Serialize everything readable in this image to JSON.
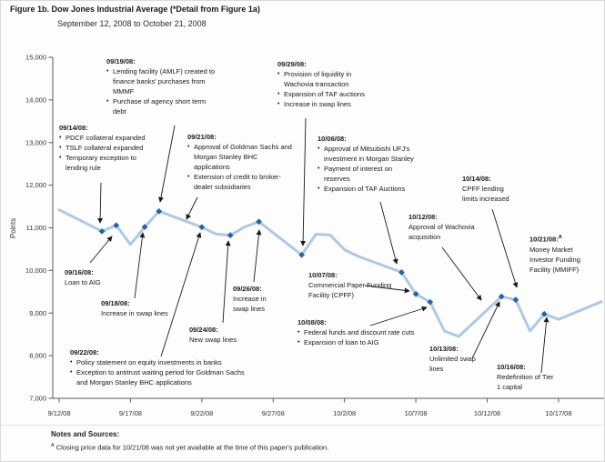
{
  "figure": {
    "title": "Figure 1b. Dow Jones Industrial Average (*Detail from Figure 1a)",
    "subtitle": "September 12, 2008 to October 21, 2008"
  },
  "chart_data": {
    "type": "line",
    "title": "Dow Jones Industrial Average, September 12, 2008 to October 21, 2008",
    "xlabel": "",
    "ylabel": "Points",
    "ylim": [
      7000,
      15000
    ],
    "grid": false,
    "legend": "none",
    "y_ticks": [
      "15,000",
      "14,000",
      "13,000",
      "12,000",
      "11,000",
      "10,000",
      "9,000",
      "8,000",
      "7,000"
    ],
    "x_tick_days": [
      0,
      5,
      10,
      15,
      20,
      25,
      30,
      35
    ],
    "x_tick_labels": [
      "9/12/08",
      "9/17/08",
      "9/22/08",
      "9/27/08",
      "10/2/08",
      "10/7/08",
      "10/12/08",
      "10/17/08"
    ],
    "series": [
      {
        "name": "DJIA close",
        "dates": [
          "9/12/08",
          "9/15/08",
          "9/16/08",
          "9/17/08",
          "9/18/08",
          "9/19/08",
          "9/22/08",
          "9/23/08",
          "9/24/08",
          "9/25/08",
          "9/26/08",
          "9/29/08",
          "9/30/08",
          "10/1/08",
          "10/2/08",
          "10/3/08",
          "10/6/08",
          "10/7/08",
          "10/8/08",
          "10/9/08",
          "10/10/08",
          "10/13/08",
          "10/14/08",
          "10/15/08",
          "10/16/08",
          "10/17/08",
          "10/20/08"
        ],
        "days": [
          0,
          3,
          4,
          5,
          6,
          7,
          10,
          11,
          12,
          13,
          14,
          17,
          18,
          19,
          20,
          21,
          24,
          25,
          26,
          27,
          28,
          31,
          32,
          33,
          34,
          35,
          38
        ],
        "values": [
          11422,
          10918,
          11059,
          10610,
          11020,
          11388,
          11016,
          10854,
          10825,
          11022,
          11143,
          10365,
          10851,
          10831,
          10483,
          10325,
          9956,
          9447,
          9258,
          8579,
          8451,
          9388,
          9311,
          8578,
          8979,
          8852,
          9265
        ]
      }
    ],
    "marker_days": [
      3,
      4,
      6,
      7,
      10,
      12,
      14,
      17,
      24,
      25,
      26,
      31,
      32,
      34
    ],
    "line_color": "#aec9e6",
    "marker_color": "#2565a3"
  },
  "annotations": [
    {
      "date": "09/19/08:",
      "bullets": [
        "Lending facility (AMLF) created to finance banks' purchases from MMMF",
        "Purchase of agency short term debt"
      ]
    },
    {
      "date": "09/14/08:",
      "bullets": [
        "PDCF collateral expanded",
        "TSLF collateral expanded",
        "Temporary exception to lending rule"
      ]
    },
    {
      "date": "09/21/08:",
      "bullets": [
        "Approval of Goldman Sachs and Morgan Stanley BHC applications",
        "Extension of credit to broker-dealer subsidiaries"
      ]
    },
    {
      "date": "09/29/08:",
      "bullets": [
        "Provision of liquidity in Wachovia transaction",
        "Expansion of TAF auctions",
        "Increase in swap lines"
      ]
    },
    {
      "date": "10/06/08:",
      "bullets": [
        "Approval of Mitsubishi UFJ's investment in Morgan Stanley",
        "Payment of interest on reserves",
        "Expansion of TAF Auctions"
      ]
    },
    {
      "date": "10/14/08:",
      "text": "CPFF lending limits increased"
    },
    {
      "date": "10/12/08:",
      "text": "Approval of Wachovia acquisition"
    },
    {
      "date": "10/21/08:",
      "sup": "A",
      "text": "Money Market Investor Funding Facility (MMIFF)"
    },
    {
      "date": "09/16/08:",
      "text": "Loan to AIG"
    },
    {
      "date": "09/18/08:",
      "text": "Increase in swap lines"
    },
    {
      "date": "09/22/08:",
      "bullets": [
        "Policy statement on equity investments in banks",
        "Exception to antitrust waiting period for Goldman Sachs and Morgan Stanley BHC applications"
      ]
    },
    {
      "date": "09/24/08:",
      "text": "New swap lines"
    },
    {
      "date": "09/26/08:",
      "text": "Increase in swap lines"
    },
    {
      "date": "10/07/08:",
      "text": "Commercial Paper Funding Facility (CPFF)"
    },
    {
      "date": "10/08/08:",
      "bullets": [
        "Federal funds and discount rate cuts",
        "Expansion of loan to AIG"
      ]
    },
    {
      "date": "10/13/08:",
      "text": "Unlimited swap lines"
    },
    {
      "date": "10/16/08:",
      "text": "Redefinition of Tier 1 capital"
    }
  ],
  "callout_lines": [
    {
      "x1": 110,
      "y1": 200,
      "x2": 109,
      "y2": 244
    },
    {
      "x1": 98,
      "y1": 288,
      "x2": 122,
      "y2": 259
    },
    {
      "x1": 147,
      "y1": 327,
      "x2": 156,
      "y2": 255
    },
    {
      "x1": 191,
      "y1": 137,
      "x2": 175,
      "y2": 221
    },
    {
      "x1": 216,
      "y1": 216,
      "x2": 204,
      "y2": 240
    },
    {
      "x1": 176,
      "y1": 391,
      "x2": 219,
      "y2": 255
    },
    {
      "x1": 244,
      "y1": 354,
      "x2": 250,
      "y2": 264
    },
    {
      "x1": 278,
      "y1": 309,
      "x2": 284,
      "y2": 252
    },
    {
      "x1": 335,
      "y1": 129,
      "x2": 332,
      "y2": 269
    },
    {
      "x1": 417,
      "y1": 221,
      "x2": 435,
      "y2": 289
    },
    {
      "x1": 400,
      "y1": 313,
      "x2": 449,
      "y2": 319
    },
    {
      "x1": 406,
      "y1": 357,
      "x2": 468,
      "y2": 337
    },
    {
      "x1": 485,
      "y1": 271,
      "x2": 528,
      "y2": 329
    },
    {
      "x1": 518,
      "y1": 393,
      "x2": 548,
      "y2": 331
    },
    {
      "x1": 540,
      "y1": 229,
      "x2": 567,
      "y2": 315
    },
    {
      "x1": 594,
      "y1": 409,
      "x2": 600,
      "y2": 348
    }
  ],
  "notes": {
    "heading": "Notes and Sources:",
    "sup": "A",
    "body": "Closing price data for 10/21/08 was not yet available at the time of this paper's publication."
  }
}
